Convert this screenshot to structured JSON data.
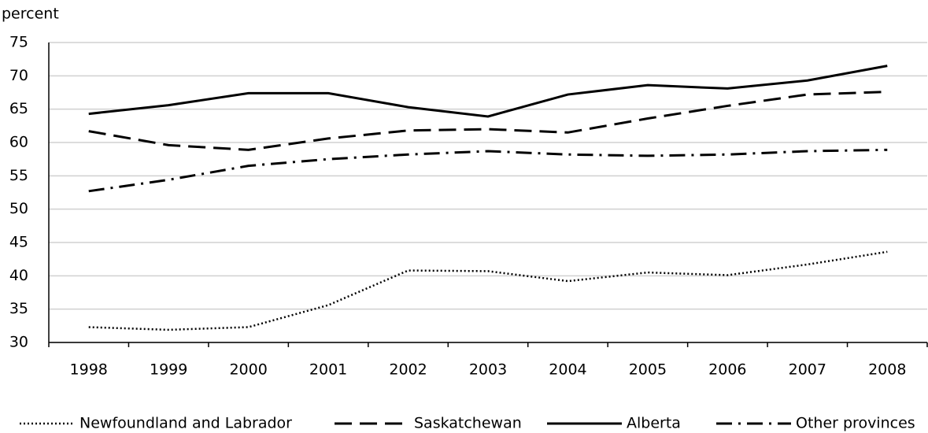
{
  "chart_data": {
    "type": "line",
    "y_label": "percent",
    "categories": [
      "1998",
      "1999",
      "2000",
      "2001",
      "2002",
      "2003",
      "2004",
      "2005",
      "2006",
      "2007",
      "2008"
    ],
    "series": [
      {
        "name": "Newfoundland and Labrador",
        "color": "#000000",
        "style": "dotted",
        "values": [
          32.3,
          31.9,
          32.3,
          35.6,
          40.8,
          40.7,
          39.2,
          40.5,
          40.1,
          41.7,
          43.6
        ]
      },
      {
        "name": "Saskatchewan",
        "color": "#000000",
        "style": "dashed",
        "values": [
          61.7,
          59.6,
          58.9,
          60.6,
          61.8,
          62.0,
          61.5,
          63.6,
          65.5,
          67.2,
          67.6
        ]
      },
      {
        "name": "Alberta",
        "color": "#000000",
        "style": "solid",
        "values": [
          64.3,
          65.6,
          67.4,
          67.4,
          65.3,
          63.9,
          67.2,
          68.6,
          68.1,
          69.3,
          71.5
        ]
      },
      {
        "name": "Other provinces",
        "color": "#000000",
        "style": "dashdot",
        "values": [
          52.7,
          54.4,
          56.5,
          57.5,
          58.2,
          58.7,
          58.2,
          58.0,
          58.2,
          58.7,
          58.9
        ]
      }
    ],
    "ylim": [
      30,
      75
    ],
    "yticks": [
      30,
      35,
      40,
      45,
      50,
      55,
      60,
      65,
      70,
      75
    ],
    "grid": true,
    "legend": "bottom"
  }
}
